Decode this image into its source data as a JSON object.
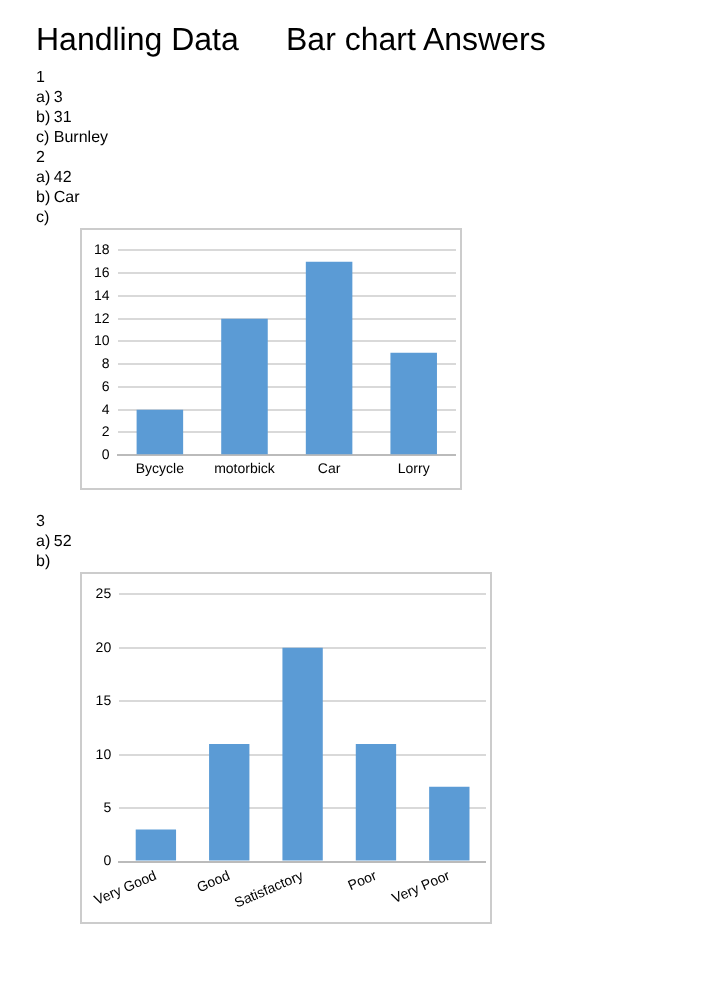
{
  "chart_data": [
    {
      "type": "bar",
      "title": "Handling Data",
      "subtitle": "Bar chart Answers",
      "annotations": [
        "1",
        "a)\t3",
        "b)\t31",
        "c)\tBurnley",
        "2",
        "a)\t42",
        "b)\tCar",
        "c)"
      ],
      "categories": [
        "Bycycle",
        "motorbick",
        "Car",
        "Lorry"
      ],
      "values": [
        4,
        12,
        17,
        9
      ],
      "color": "#5b9bd5",
      "ylim": [
        0,
        18
      ],
      "yticks": [
        0,
        2,
        4,
        6,
        8,
        10,
        12,
        14,
        16,
        18
      ],
      "grid": "y"
    },
    {
      "type": "bar",
      "annotations": [
        "3",
        "a)\t52",
        "b)"
      ],
      "categories": [
        "Very Good",
        "Good",
        "Satisfactory",
        "Poor",
        "Very Poor"
      ],
      "values": [
        3,
        11,
        20,
        11,
        7
      ],
      "color": "#5b9bd5",
      "ylim": [
        0,
        25
      ],
      "yticks": [
        0,
        5,
        10,
        15,
        20,
        25
      ],
      "grid": "y"
    }
  ]
}
